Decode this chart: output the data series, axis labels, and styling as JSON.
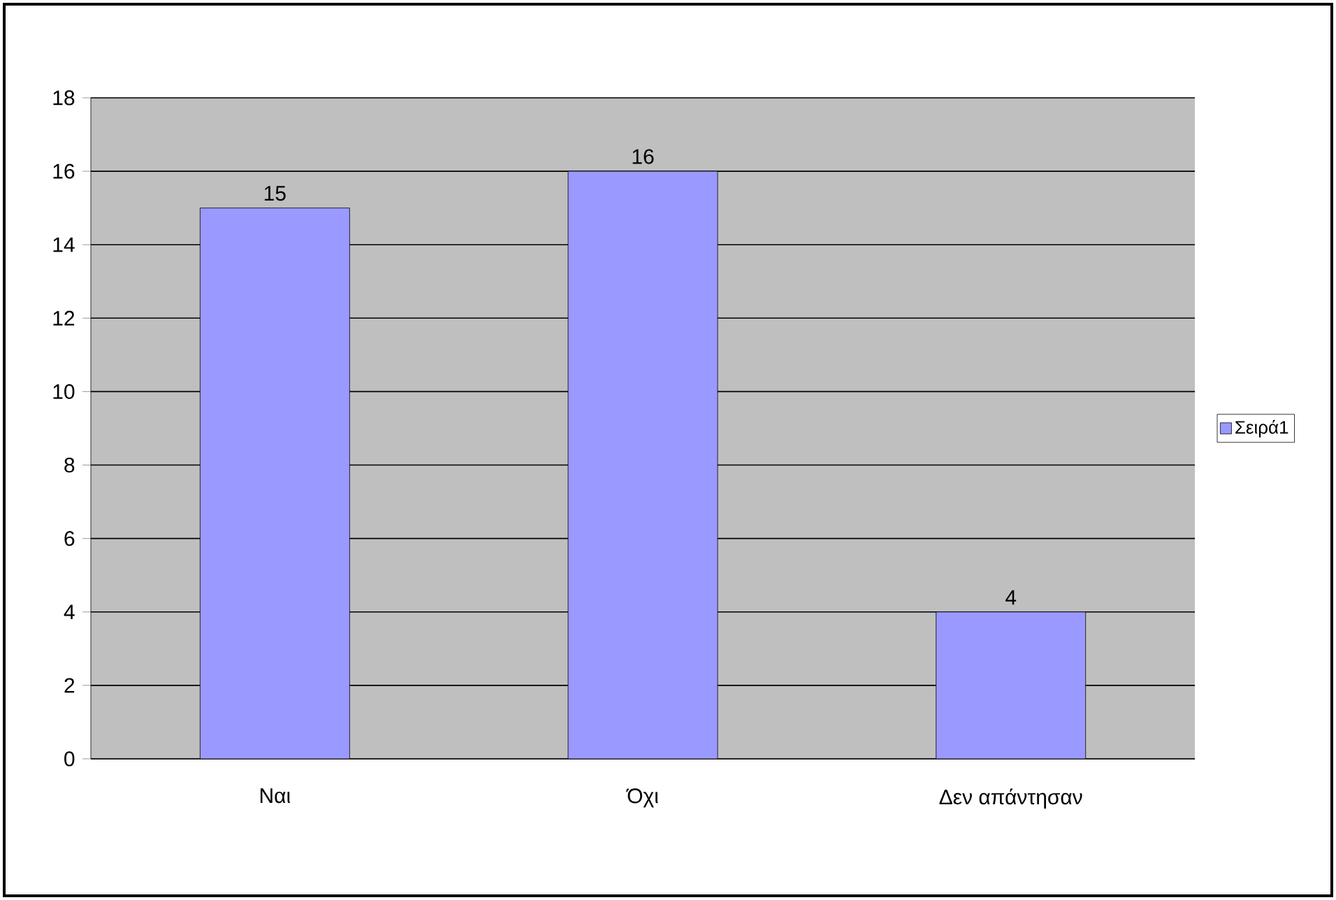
{
  "chart_data": {
    "type": "bar",
    "categories": [
      "Ναι",
      "Όχι",
      "Δεν απάντησαν"
    ],
    "series": [
      {
        "name": "Σειρά1",
        "color": "#9999ff",
        "values": [
          15,
          16,
          4
        ]
      }
    ],
    "ylim": [
      0,
      18
    ],
    "yticks": [
      0,
      2,
      4,
      6,
      8,
      10,
      12,
      14,
      16,
      18
    ],
    "grid": "y",
    "legend": "right",
    "data_labels": true
  }
}
